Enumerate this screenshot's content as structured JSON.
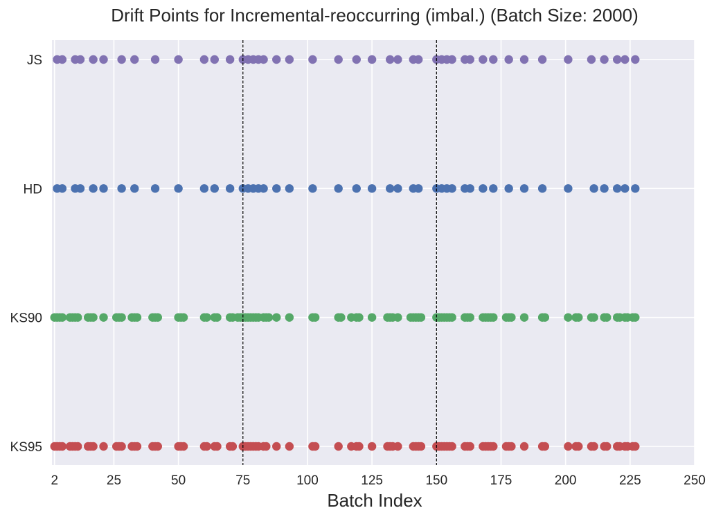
{
  "chart_data": {
    "type": "scatter",
    "title": "Drift Points for Incremental-reoccurring (imbal.) (Batch Size: 2000)",
    "xlabel": "Batch Index",
    "ylabel": "",
    "xlim": [
      1,
      250
    ],
    "xticks": [
      2,
      25,
      50,
      75,
      100,
      125,
      150,
      175,
      200,
      225,
      250
    ],
    "xtick_labels": [
      "2",
      "25",
      "50",
      "75",
      "100",
      "125",
      "150",
      "175",
      "200",
      "225",
      "250"
    ],
    "categories": [
      "KS95",
      "KS90",
      "HD",
      "JS"
    ],
    "grid": true,
    "background": "#eaeaf2",
    "vlines": [
      75,
      150
    ],
    "series": [
      {
        "name": "KS95",
        "color": "#c44e52",
        "x": [
          2,
          3,
          4,
          5,
          8,
          9,
          10,
          11,
          15,
          16,
          17,
          21,
          26,
          27,
          28,
          32,
          33,
          34,
          40,
          41,
          42,
          50,
          51,
          52,
          60,
          61,
          64,
          65,
          70,
          71,
          75,
          76,
          77,
          78,
          79,
          80,
          81,
          83,
          84,
          88,
          93,
          102,
          103,
          112,
          117,
          119,
          120,
          125,
          131,
          132,
          133,
          135,
          141,
          142,
          143,
          144,
          150,
          151,
          152,
          153,
          154,
          155,
          156,
          161,
          162,
          163,
          168,
          169,
          170,
          171,
          172,
          177,
          178,
          179,
          184,
          191,
          192,
          201,
          204,
          205,
          210,
          211,
          215,
          216,
          220,
          221,
          223,
          224,
          226,
          227
        ]
      },
      {
        "name": "KS90",
        "color": "#55a868",
        "x": [
          2,
          3,
          4,
          5,
          8,
          9,
          10,
          11,
          15,
          16,
          17,
          21,
          26,
          27,
          28,
          32,
          33,
          34,
          40,
          41,
          42,
          50,
          51,
          52,
          60,
          61,
          64,
          65,
          70,
          71,
          73,
          74,
          75,
          76,
          77,
          78,
          79,
          80,
          81,
          83,
          84,
          85,
          88,
          93,
          102,
          103,
          112,
          113,
          117,
          119,
          120,
          125,
          131,
          132,
          133,
          135,
          140,
          141,
          142,
          143,
          144,
          150,
          151,
          152,
          153,
          154,
          155,
          156,
          161,
          162,
          163,
          168,
          169,
          170,
          171,
          172,
          177,
          178,
          179,
          184,
          191,
          192,
          201,
          204,
          205,
          210,
          211,
          215,
          216,
          220,
          221,
          223,
          224,
          226,
          227
        ]
      },
      {
        "name": "HD",
        "color": "#4c72b0",
        "x": [
          3,
          5,
          10,
          12,
          17,
          21,
          28,
          33,
          41,
          50,
          60,
          64,
          70,
          75,
          77,
          79,
          81,
          83,
          88,
          93,
          102,
          112,
          119,
          125,
          132,
          135,
          141,
          143,
          150,
          152,
          154,
          156,
          161,
          163,
          168,
          172,
          178,
          184,
          191,
          201,
          211,
          215,
          220,
          223,
          227
        ]
      },
      {
        "name": "JS",
        "color": "#8172b2",
        "x": [
          3,
          5,
          10,
          12,
          17,
          21,
          28,
          33,
          41,
          50,
          60,
          64,
          70,
          75,
          77,
          79,
          81,
          83,
          88,
          93,
          102,
          112,
          119,
          125,
          132,
          135,
          141,
          143,
          150,
          152,
          154,
          156,
          161,
          163,
          168,
          172,
          178,
          184,
          191,
          201,
          210,
          215,
          220,
          223,
          227
        ]
      }
    ]
  }
}
